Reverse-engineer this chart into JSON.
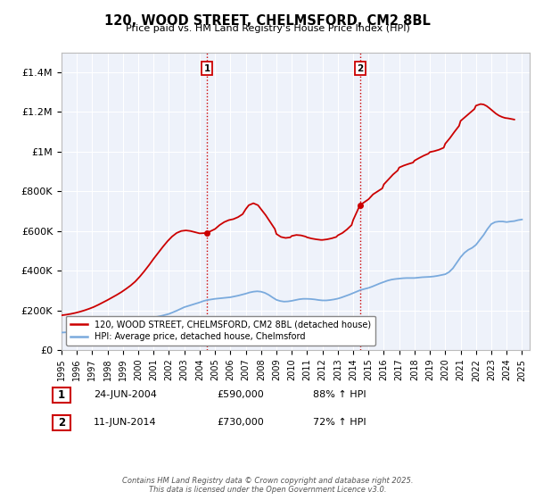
{
  "title": "120, WOOD STREET, CHELMSFORD, CM2 8BL",
  "subtitle": "Price paid vs. HM Land Registry's House Price Index (HPI)",
  "ylabel_ticks": [
    "£0",
    "£200K",
    "£400K",
    "£600K",
    "£800K",
    "£1M",
    "£1.2M",
    "£1.4M"
  ],
  "ytick_vals": [
    0,
    200000,
    400000,
    600000,
    800000,
    1000000,
    1200000,
    1400000
  ],
  "ylim": [
    0,
    1500000
  ],
  "xlim_start": 1995,
  "xlim_end": 2025.5,
  "sale1_date": 2004.47,
  "sale1_price": 590000,
  "sale2_date": 2014.44,
  "sale2_price": 730000,
  "line1_label": "120, WOOD STREET, CHELMSFORD, CM2 8BL (detached house)",
  "line2_label": "HPI: Average price, detached house, Chelmsford",
  "line1_color": "#cc0000",
  "line2_color": "#7aaadd",
  "background_color": "#eef2fa",
  "grid_color": "#ffffff",
  "footnote": "Contains HM Land Registry data © Crown copyright and database right 2025.\nThis data is licensed under the Open Government Licence v3.0.",
  "table_rows": [
    [
      "1",
      "24-JUN-2004",
      "£590,000",
      "88% ↑ HPI"
    ],
    [
      "2",
      "11-JUN-2014",
      "£730,000",
      "72% ↑ HPI"
    ]
  ],
  "hpi_years": [
    1995.0,
    1995.25,
    1995.5,
    1995.75,
    1996.0,
    1996.25,
    1996.5,
    1996.75,
    1997.0,
    1997.25,
    1997.5,
    1997.75,
    1998.0,
    1998.25,
    1998.5,
    1998.75,
    1999.0,
    1999.25,
    1999.5,
    1999.75,
    2000.0,
    2000.25,
    2000.5,
    2000.75,
    2001.0,
    2001.25,
    2001.5,
    2001.75,
    2002.0,
    2002.25,
    2002.5,
    2002.75,
    2003.0,
    2003.25,
    2003.5,
    2003.75,
    2004.0,
    2004.25,
    2004.5,
    2004.75,
    2005.0,
    2005.25,
    2005.5,
    2005.75,
    2006.0,
    2006.25,
    2006.5,
    2006.75,
    2007.0,
    2007.25,
    2007.5,
    2007.75,
    2008.0,
    2008.25,
    2008.5,
    2008.75,
    2009.0,
    2009.25,
    2009.5,
    2009.75,
    2010.0,
    2010.25,
    2010.5,
    2010.75,
    2011.0,
    2011.25,
    2011.5,
    2011.75,
    2012.0,
    2012.25,
    2012.5,
    2012.75,
    2013.0,
    2013.25,
    2013.5,
    2013.75,
    2014.0,
    2014.25,
    2014.5,
    2014.75,
    2015.0,
    2015.25,
    2015.5,
    2015.75,
    2016.0,
    2016.25,
    2016.5,
    2016.75,
    2017.0,
    2017.25,
    2017.5,
    2017.75,
    2018.0,
    2018.25,
    2018.5,
    2018.75,
    2019.0,
    2019.25,
    2019.5,
    2019.75,
    2020.0,
    2020.25,
    2020.5,
    2020.75,
    2021.0,
    2021.25,
    2021.5,
    2021.75,
    2022.0,
    2022.25,
    2022.5,
    2022.75,
    2023.0,
    2023.25,
    2023.5,
    2023.75,
    2024.0,
    2024.25,
    2024.5,
    2024.75,
    2025.0
  ],
  "hpi_vals": [
    88000,
    89000,
    90000,
    91000,
    93000,
    95000,
    97000,
    100000,
    103000,
    107000,
    111000,
    115000,
    119000,
    123000,
    127000,
    131000,
    135000,
    140000,
    145000,
    150000,
    155000,
    158000,
    161000,
    163000,
    165000,
    168000,
    172000,
    177000,
    182000,
    190000,
    198000,
    207000,
    216000,
    222000,
    228000,
    234000,
    240000,
    247000,
    252000,
    255000,
    258000,
    260000,
    262000,
    264000,
    266000,
    270000,
    274000,
    279000,
    284000,
    290000,
    294000,
    296000,
    294000,
    288000,
    278000,
    265000,
    253000,
    247000,
    244000,
    245000,
    248000,
    252000,
    256000,
    258000,
    258000,
    257000,
    255000,
    252000,
    250000,
    250000,
    252000,
    255000,
    259000,
    265000,
    272000,
    279000,
    287000,
    295000,
    303000,
    308000,
    313000,
    320000,
    328000,
    336000,
    343000,
    350000,
    355000,
    358000,
    360000,
    362000,
    363000,
    363000,
    363000,
    365000,
    367000,
    368000,
    369000,
    371000,
    374000,
    378000,
    382000,
    393000,
    412000,
    440000,
    468000,
    490000,
    505000,
    515000,
    530000,
    555000,
    580000,
    610000,
    635000,
    645000,
    648000,
    648000,
    645000,
    648000,
    650000,
    655000,
    658000
  ],
  "price_years": [
    1995.0,
    1995.3,
    1995.6,
    1995.9,
    1996.2,
    1996.5,
    1996.8,
    1997.1,
    1997.4,
    1997.7,
    1998.0,
    1998.3,
    1998.6,
    1998.9,
    1999.2,
    1999.5,
    1999.8,
    2000.1,
    2000.4,
    2000.7,
    2001.0,
    2001.3,
    2001.6,
    2001.9,
    2002.2,
    2002.5,
    2002.8,
    2003.1,
    2003.4,
    2003.7,
    2004.0,
    2004.47,
    2005.0,
    2005.3,
    2005.6,
    2005.9,
    2006.2,
    2006.5,
    2006.8,
    2007.0,
    2007.2,
    2007.5,
    2007.8,
    2008.0,
    2008.3,
    2008.6,
    2008.9,
    2009.0,
    2009.3,
    2009.6,
    2009.9,
    2010.0,
    2010.3,
    2010.6,
    2010.9,
    2011.0,
    2011.3,
    2011.6,
    2011.9,
    2012.0,
    2012.3,
    2012.6,
    2012.9,
    2013.0,
    2013.3,
    2013.6,
    2013.9,
    2014.0,
    2014.44,
    2015.0,
    2015.3,
    2015.6,
    2015.9,
    2016.0,
    2016.3,
    2016.6,
    2016.9,
    2017.0,
    2017.3,
    2017.6,
    2017.9,
    2018.0,
    2018.3,
    2018.6,
    2018.9,
    2019.0,
    2019.3,
    2019.6,
    2019.9,
    2020.0,
    2020.3,
    2020.6,
    2020.9,
    2021.0,
    2021.3,
    2021.6,
    2021.9,
    2022.0,
    2022.3,
    2022.5,
    2022.7,
    2022.9,
    2023.1,
    2023.3,
    2023.5,
    2023.7,
    2023.9,
    2024.1,
    2024.3,
    2024.5
  ],
  "price_vals": [
    175000,
    178000,
    182000,
    187000,
    193000,
    200000,
    208000,
    217000,
    228000,
    240000,
    252000,
    265000,
    278000,
    292000,
    308000,
    325000,
    345000,
    370000,
    398000,
    428000,
    460000,
    490000,
    520000,
    548000,
    572000,
    590000,
    600000,
    603000,
    600000,
    594000,
    588000,
    590000,
    610000,
    630000,
    645000,
    655000,
    660000,
    670000,
    685000,
    710000,
    730000,
    740000,
    730000,
    710000,
    680000,
    645000,
    610000,
    585000,
    570000,
    565000,
    568000,
    575000,
    580000,
    578000,
    572000,
    568000,
    562000,
    558000,
    555000,
    555000,
    558000,
    563000,
    570000,
    578000,
    590000,
    608000,
    630000,
    655000,
    730000,
    760000,
    785000,
    800000,
    815000,
    835000,
    860000,
    885000,
    905000,
    920000,
    930000,
    938000,
    945000,
    955000,
    968000,
    980000,
    990000,
    998000,
    1003000,
    1010000,
    1020000,
    1040000,
    1068000,
    1100000,
    1130000,
    1155000,
    1175000,
    1195000,
    1215000,
    1232000,
    1240000,
    1238000,
    1230000,
    1218000,
    1205000,
    1192000,
    1182000,
    1175000,
    1170000,
    1168000,
    1165000,
    1162000
  ]
}
